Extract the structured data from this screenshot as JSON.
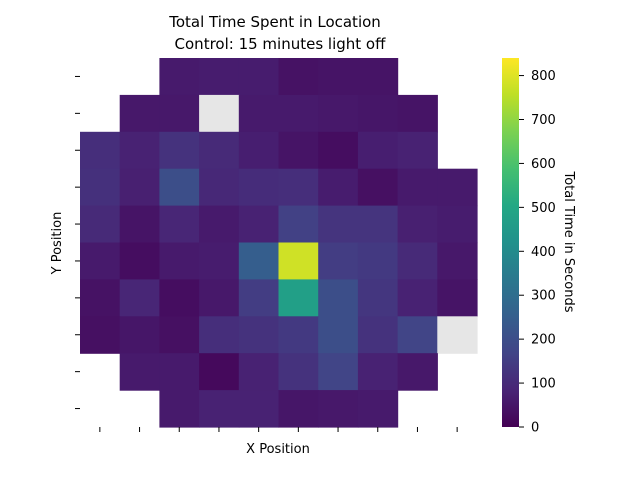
{
  "chart_data": {
    "type": "heatmap",
    "title": "Total Time Spent in Location",
    "subtitle": "Control: 15 minutes light off",
    "xlabel": "X Position",
    "ylabel": "Y Position",
    "colorbar_label": "Total Time in Seconds",
    "colormap": "viridis",
    "vmin": 0,
    "vmax": 840,
    "colorbar_ticks": [
      0,
      100,
      200,
      300,
      400,
      500,
      600,
      700,
      800
    ],
    "x_tick_count": 10,
    "y_tick_count": 10,
    "missing_color": "#e6e6e6",
    "grid": false,
    "values": [
      [
        null,
        null,
        60,
        65,
        65,
        40,
        45,
        45,
        null,
        null
      ],
      [
        null,
        55,
        55,
        "missing",
        60,
        60,
        55,
        50,
        45,
        null
      ],
      [
        110,
        80,
        120,
        100,
        70,
        45,
        30,
        70,
        80,
        null
      ],
      [
        115,
        75,
        200,
        95,
        105,
        110,
        65,
        35,
        60,
        60
      ],
      [
        100,
        45,
        90,
        60,
        80,
        160,
        125,
        125,
        75,
        65
      ],
      [
        60,
        30,
        60,
        65,
        250,
        780,
        150,
        140,
        100,
        55
      ],
      [
        40,
        90,
        30,
        55,
        150,
        470,
        200,
        130,
        80,
        45
      ],
      [
        35,
        50,
        35,
        110,
        120,
        140,
        200,
        120,
        170,
        "missing"
      ],
      [
        null,
        60,
        60,
        20,
        80,
        120,
        170,
        80,
        55,
        null
      ],
      [
        null,
        null,
        60,
        80,
        80,
        50,
        55,
        60,
        null,
        null
      ]
    ]
  }
}
